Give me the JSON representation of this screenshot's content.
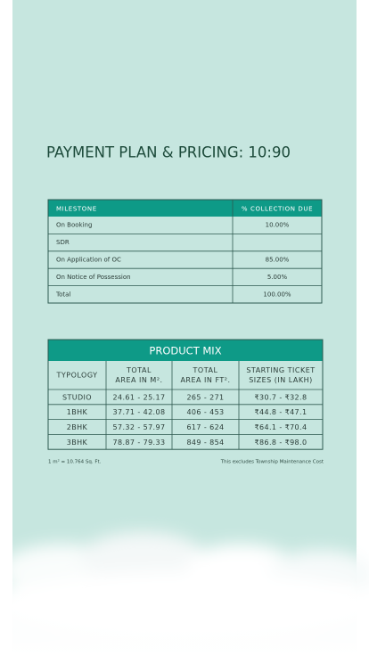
{
  "heading": "PAYMENT PLAN & PRICING: 10:90",
  "payment_table": {
    "columns": [
      "MILESTONE",
      "% COLLECTION DUE"
    ],
    "rows": [
      [
        "On Booking",
        "10.00%"
      ],
      [
        "SDR",
        ""
      ],
      [
        "On Application of OC",
        "85.00%"
      ],
      [
        "On Notice of Possession",
        "5.00%"
      ],
      [
        "Total",
        "100.00%"
      ]
    ]
  },
  "product_table": {
    "title": "PRODUCT MIX",
    "columns": [
      [
        "TYPOLOGY"
      ],
      [
        "TOTAL",
        "AREA IN M²."
      ],
      [
        "TOTAL",
        "AREA IN FT²."
      ],
      [
        "STARTING TICKET",
        "SIZES (IN LAKH)"
      ]
    ],
    "rows": [
      [
        "STUDIO",
        "24.61 - 25.17",
        "265 - 271",
        "₹30.7 - ₹32.8"
      ],
      [
        "1BHK",
        "37.71 - 42.08",
        "406 - 453",
        "₹44.8 - ₹47.1"
      ],
      [
        "2BHK",
        "57.32 - 57.97",
        "617 - 624",
        "₹64.1 - ₹70.4"
      ],
      [
        "3BHK",
        "78.87 - 79.33",
        "849 - 854",
        "₹86.8 - ₹98.0"
      ]
    ]
  },
  "footnotes": {
    "conversion": "1 m² = 10.764 Sq. Ft.",
    "disclaimer": "This excludes Township Maintenance Cost"
  }
}
